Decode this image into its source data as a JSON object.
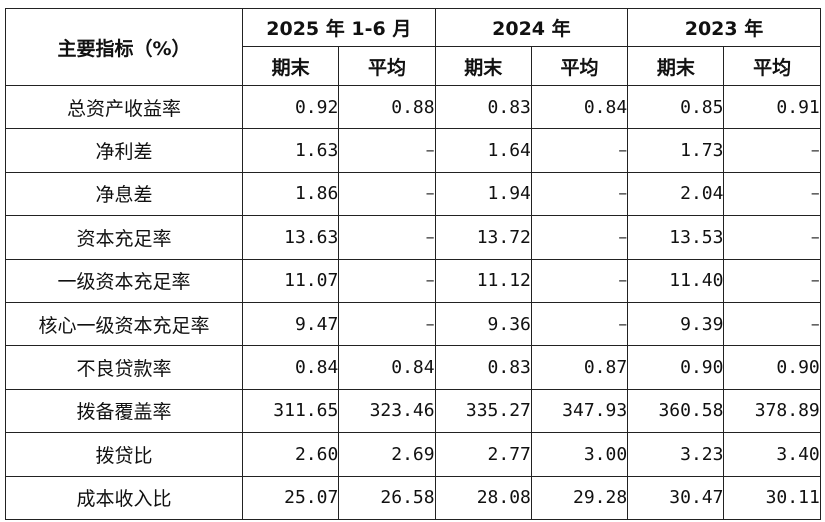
{
  "header": {
    "corner": "主要指标（%）",
    "periods": [
      "2025 年 1-6 月",
      "2024 年",
      "2023 年"
    ],
    "sub": [
      "期末",
      "平均",
      "期末",
      "平均",
      "期末",
      "平均"
    ]
  },
  "rows": [
    {
      "label": "总资产收益率",
      "values": [
        "0.92",
        "0.88",
        "0.83",
        "0.84",
        "0.85",
        "0.91"
      ]
    },
    {
      "label": "净利差",
      "values": [
        "1.63",
        "–",
        "1.64",
        "–",
        "1.73",
        "–"
      ]
    },
    {
      "label": "净息差",
      "values": [
        "1.86",
        "–",
        "1.94",
        "–",
        "2.04",
        "–"
      ]
    },
    {
      "label": "资本充足率",
      "values": [
        "13.63",
        "–",
        "13.72",
        "–",
        "13.53",
        "–"
      ]
    },
    {
      "label": "一级资本充足率",
      "values": [
        "11.07",
        "–",
        "11.12",
        "–",
        "11.40",
        "–"
      ]
    },
    {
      "label": "核心一级资本充足率",
      "values": [
        "9.47",
        "–",
        "9.36",
        "–",
        "9.39",
        "–"
      ]
    },
    {
      "label": "不良贷款率",
      "values": [
        "0.84",
        "0.84",
        "0.83",
        "0.87",
        "0.90",
        "0.90"
      ]
    },
    {
      "label": "拨备覆盖率",
      "values": [
        "311.65",
        "323.46",
        "335.27",
        "347.93",
        "360.58",
        "378.89"
      ]
    },
    {
      "label": "拨贷比",
      "values": [
        "2.60",
        "2.69",
        "2.77",
        "3.00",
        "3.23",
        "3.40"
      ]
    },
    {
      "label": "成本收入比",
      "values": [
        "25.07",
        "26.58",
        "28.08",
        "29.28",
        "30.47",
        "30.11"
      ]
    }
  ]
}
